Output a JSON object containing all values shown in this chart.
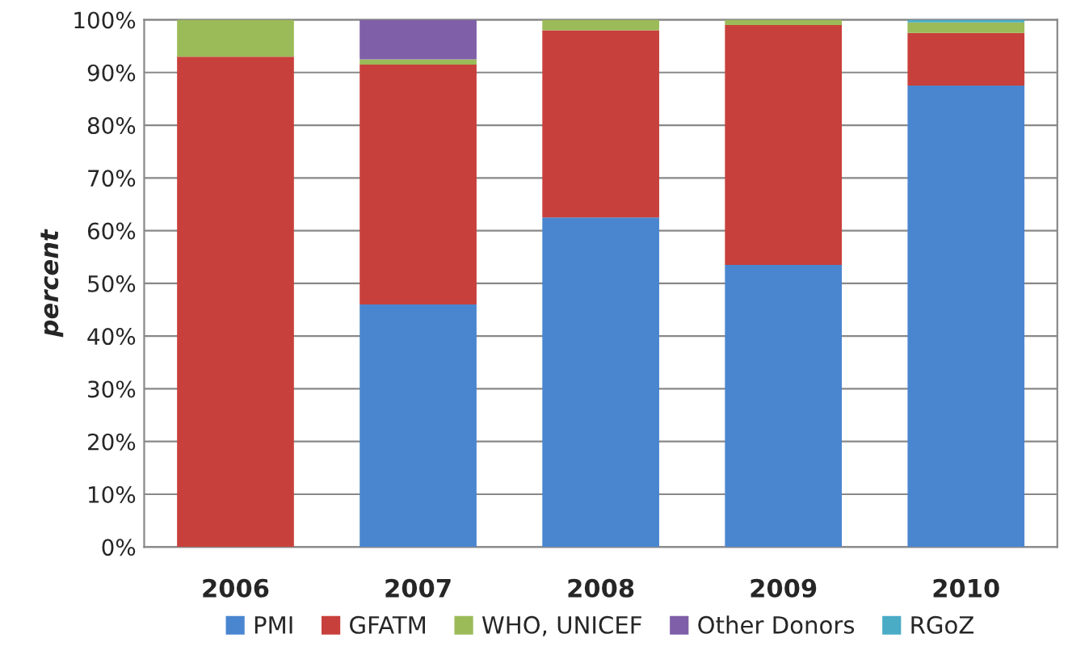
{
  "chart_data": {
    "type": "bar",
    "stacked": true,
    "ylabel": "percent",
    "categories": [
      "2006",
      "2007",
      "2008",
      "2009",
      "2010"
    ],
    "series": [
      {
        "name": "PMI",
        "color": "#4a86d0",
        "values": [
          0,
          46,
          62.5,
          53.5,
          87.5
        ]
      },
      {
        "name": "GFATM",
        "color": "#c8403c",
        "values": [
          93,
          45.5,
          35.5,
          45.5,
          10
        ]
      },
      {
        "name": "WHO, UNICEF",
        "color": "#9bbb59",
        "values": [
          7,
          1,
          2,
          1,
          2
        ]
      },
      {
        "name": "Other Donors",
        "color": "#7e5fa8",
        "values": [
          0,
          7.5,
          0,
          0,
          0
        ]
      },
      {
        "name": "RGoZ",
        "color": "#4bacc6",
        "values": [
          0,
          0,
          0,
          0,
          0.5
        ]
      }
    ],
    "ylim": [
      0,
      100
    ],
    "yticks": [
      {
        "value": 0,
        "label": "0%"
      },
      {
        "value": 10,
        "label": "10%"
      },
      {
        "value": 20,
        "label": "20%"
      },
      {
        "value": 30,
        "label": "30%"
      },
      {
        "value": 40,
        "label": "40%"
      },
      {
        "value": 50,
        "label": "50%"
      },
      {
        "value": 60,
        "label": "60%"
      },
      {
        "value": 70,
        "label": "70%"
      },
      {
        "value": 80,
        "label": "80%"
      },
      {
        "value": 90,
        "label": "90%"
      },
      {
        "value": 100,
        "label": "100%"
      }
    ],
    "grid": "y",
    "legend": "bottom"
  }
}
